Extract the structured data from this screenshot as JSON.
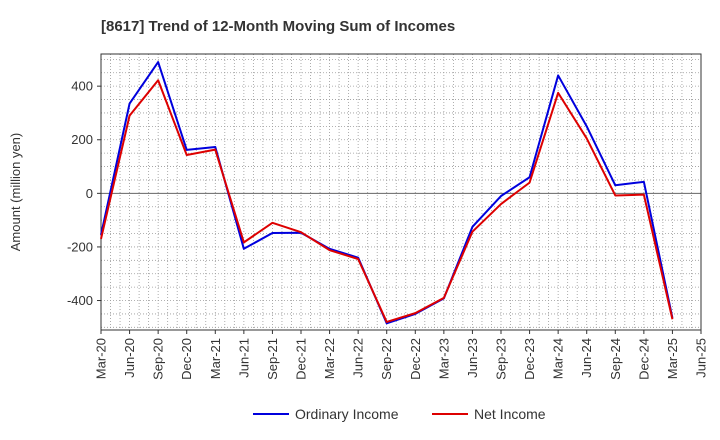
{
  "chart_data": {
    "type": "line",
    "title": "[8617]  Trend of 12-Month Moving Sum of Incomes",
    "ylabel": "Amount (million yen)",
    "xlabel": "",
    "ylim": [
      -510,
      520
    ],
    "yticks": [
      -400,
      -200,
      0,
      200,
      400
    ],
    "x_tick_labels": [
      "Mar-20",
      "Jun-20",
      "Sep-20",
      "Dec-20",
      "Mar-21",
      "Jun-21",
      "Sep-21",
      "Dec-21",
      "Mar-22",
      "Jun-22",
      "Sep-22",
      "Dec-22",
      "Mar-23",
      "Jun-23",
      "Sep-23",
      "Dec-23",
      "Mar-24",
      "Jun-24",
      "Sep-24",
      "Dec-24",
      "Mar-25",
      "Jun-25"
    ],
    "series": [
      {
        "name": "Ordinary Income",
        "color": "#0000dd",
        "values": [
          -155,
          335,
          490,
          162,
          173,
          -207,
          -148,
          -147,
          -207,
          -240,
          -485,
          -450,
          -392,
          -125,
          -10,
          60,
          440,
          250,
          30,
          43,
          -465
        ]
      },
      {
        "name": "Net Income",
        "color": "#dd0000",
        "values": [
          -170,
          290,
          422,
          143,
          163,
          -183,
          -110,
          -145,
          -212,
          -245,
          -480,
          -447,
          -390,
          -143,
          -40,
          40,
          375,
          205,
          -8,
          -5,
          -470
        ]
      }
    ],
    "legend_position": "bottom-center",
    "grid": true
  }
}
